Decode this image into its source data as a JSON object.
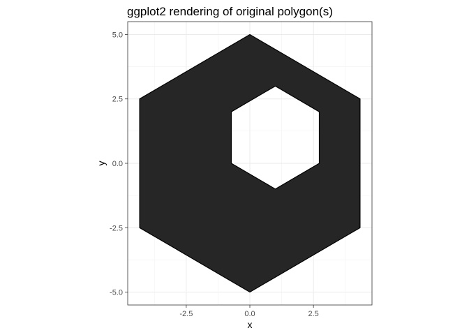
{
  "chart_data": {
    "type": "polygon",
    "title": "ggplot2 rendering of original polygon(s)",
    "xlabel": "x",
    "ylabel": "y",
    "xlim": [
      -4.8,
      4.8
    ],
    "ylim": [
      -5.5,
      5.5
    ],
    "x_ticks": [
      -2.5,
      0.0,
      2.5
    ],
    "x_tick_labels": [
      "-2.5",
      "0.0",
      "2.5"
    ],
    "y_ticks": [
      -5.0,
      -2.5,
      0.0,
      2.5,
      5.0
    ],
    "y_tick_labels": [
      "-5.0",
      "-2.5",
      "0.0",
      "2.5",
      "5.0"
    ],
    "x_minor_breaks": [
      -3.75,
      -1.25,
      1.25,
      3.75
    ],
    "y_minor_breaks": [
      -3.75,
      -1.25,
      1.25,
      3.75
    ],
    "grid": true,
    "fill_color": "#262626",
    "outline_color": "#000000",
    "outer_ring": [
      [
        0.0,
        5.0
      ],
      [
        4.33,
        2.5
      ],
      [
        4.33,
        -2.5
      ],
      [
        0.0,
        -5.0
      ],
      [
        -4.33,
        -2.5
      ],
      [
        -4.33,
        2.5
      ]
    ],
    "hole_ring": [
      [
        1.0,
        3.0
      ],
      [
        2.73,
        2.0
      ],
      [
        2.73,
        0.0
      ],
      [
        1.0,
        -1.0
      ],
      [
        -0.73,
        0.0
      ],
      [
        -0.73,
        2.0
      ]
    ]
  }
}
